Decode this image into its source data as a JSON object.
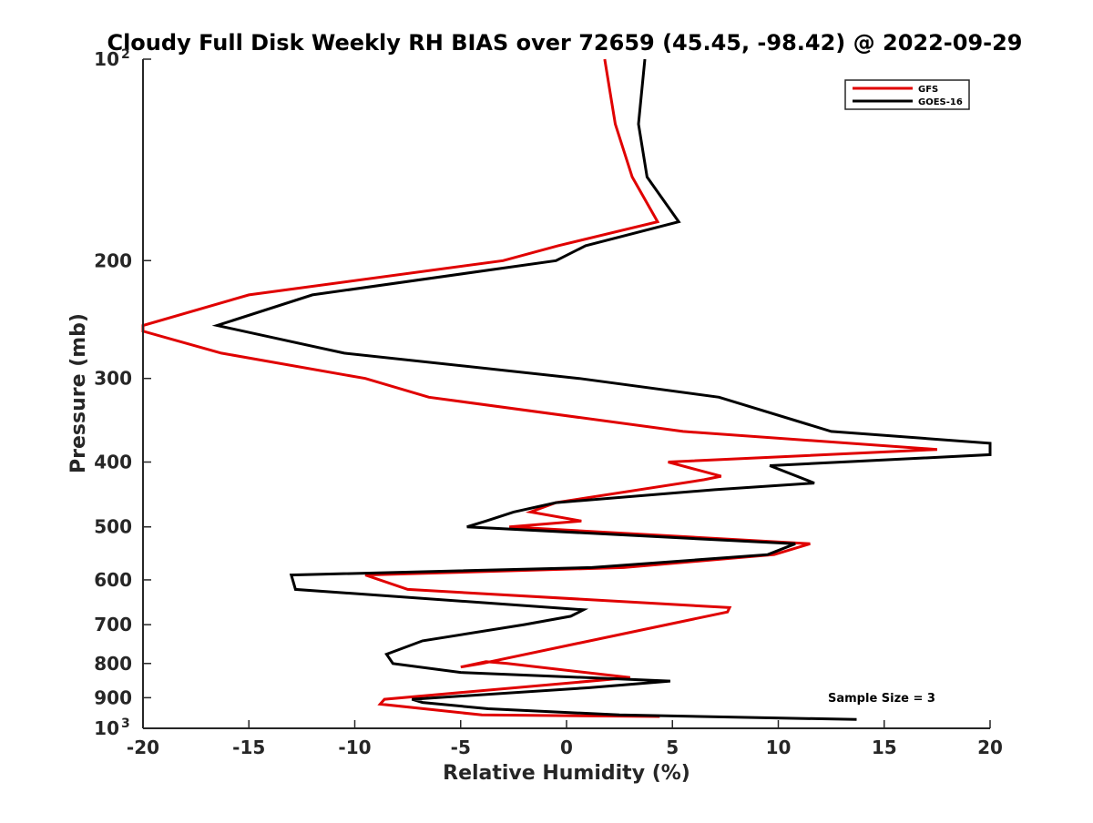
{
  "chart_data": {
    "type": "line",
    "title": "Cloudy Full Disk Weekly RH BIAS over 72659 (45.45, -98.42) @ 2022-09-29",
    "xlabel": "Relative Humidity (%)",
    "ylabel": "Pressure (mb)",
    "xlim": [
      -20,
      20
    ],
    "ylim": [
      100,
      1000
    ],
    "yscale": "log",
    "y_reversed": true,
    "grid": false,
    "legend_position": "top-right",
    "annotation": "Sample Size = 3",
    "xticks": [
      -20,
      -15,
      -10,
      -5,
      0,
      5,
      10,
      15,
      20
    ],
    "xtick_labels": [
      "-20",
      "-15",
      "-10",
      "-5",
      "0",
      "5",
      "10",
      "15",
      "20"
    ],
    "yticks": [
      {
        "value": 100,
        "label": "10",
        "sup": "2"
      },
      {
        "value": 200,
        "label": "200",
        "sup": ""
      },
      {
        "value": 300,
        "label": "300",
        "sup": ""
      },
      {
        "value": 400,
        "label": "400",
        "sup": ""
      },
      {
        "value": 500,
        "label": "500",
        "sup": ""
      },
      {
        "value": 600,
        "label": "600",
        "sup": ""
      },
      {
        "value": 700,
        "label": "700",
        "sup": ""
      },
      {
        "value": 800,
        "label": "800",
        "sup": ""
      },
      {
        "value": 900,
        "label": "900",
        "sup": ""
      },
      {
        "value": 1000,
        "label": "10",
        "sup": "3"
      }
    ],
    "series": [
      {
        "name": "GFS",
        "color": "#e00000",
        "points": [
          [
            1.8,
            100
          ],
          [
            2.3,
            125
          ],
          [
            3.1,
            150
          ],
          [
            4.3,
            175
          ],
          [
            -0.4,
            190
          ],
          [
            -3.0,
            200
          ],
          [
            -15.0,
            225
          ],
          [
            -20.0,
            250
          ],
          [
            -20.0,
            255
          ],
          [
            -16.3,
            275
          ],
          [
            -9.5,
            300
          ],
          [
            -6.5,
            320
          ],
          [
            5.5,
            360
          ],
          [
            17.5,
            383
          ],
          [
            4.8,
            400
          ],
          [
            7.3,
            420
          ],
          [
            6.5,
            425
          ],
          [
            -0.5,
            460
          ],
          [
            -1.7,
            475
          ],
          [
            0.7,
            490
          ],
          [
            -2.7,
            500
          ],
          [
            11.5,
            530
          ],
          [
            9.8,
            550
          ],
          [
            2.7,
            575
          ],
          [
            -9.5,
            590
          ],
          [
            -7.5,
            620
          ],
          [
            7.7,
            660
          ],
          [
            7.6,
            670
          ],
          [
            -4.0,
            800
          ],
          [
            -5.0,
            810
          ],
          [
            -3.8,
            795
          ],
          [
            -2.8,
            800
          ],
          [
            3.0,
            840
          ],
          [
            -8.6,
            905
          ],
          [
            -8.8,
            920
          ],
          [
            -4.0,
            955
          ],
          [
            4.4,
            960
          ]
        ]
      },
      {
        "name": "GOES-16",
        "color": "#000000",
        "points": [
          [
            3.7,
            100
          ],
          [
            3.4,
            125
          ],
          [
            3.8,
            150
          ],
          [
            5.3,
            175
          ],
          [
            0.9,
            190
          ],
          [
            -0.5,
            200
          ],
          [
            -12.0,
            225
          ],
          [
            -16.5,
            250
          ],
          [
            -10.5,
            275
          ],
          [
            0.6,
            300
          ],
          [
            7.2,
            320
          ],
          [
            12.5,
            360
          ],
          [
            20.0,
            375
          ],
          [
            20.0,
            390
          ],
          [
            9.6,
            405
          ],
          [
            11.7,
            430
          ],
          [
            7.0,
            440
          ],
          [
            -0.5,
            460
          ],
          [
            -2.5,
            475
          ],
          [
            -3.8,
            490
          ],
          [
            -4.7,
            500
          ],
          [
            10.8,
            530
          ],
          [
            9.5,
            550
          ],
          [
            1.2,
            575
          ],
          [
            -13.0,
            590
          ],
          [
            -12.8,
            620
          ],
          [
            0.8,
            665
          ],
          [
            0.2,
            680
          ],
          [
            -2.0,
            700
          ],
          [
            -6.8,
            740
          ],
          [
            -8.5,
            775
          ],
          [
            -8.2,
            800
          ],
          [
            -5.0,
            825
          ],
          [
            4.9,
            850
          ],
          [
            1.0,
            870
          ],
          [
            -7.3,
            905
          ],
          [
            -6.8,
            915
          ],
          [
            -3.7,
            935
          ],
          [
            2.5,
            955
          ],
          [
            13.7,
            970
          ]
        ]
      }
    ]
  }
}
